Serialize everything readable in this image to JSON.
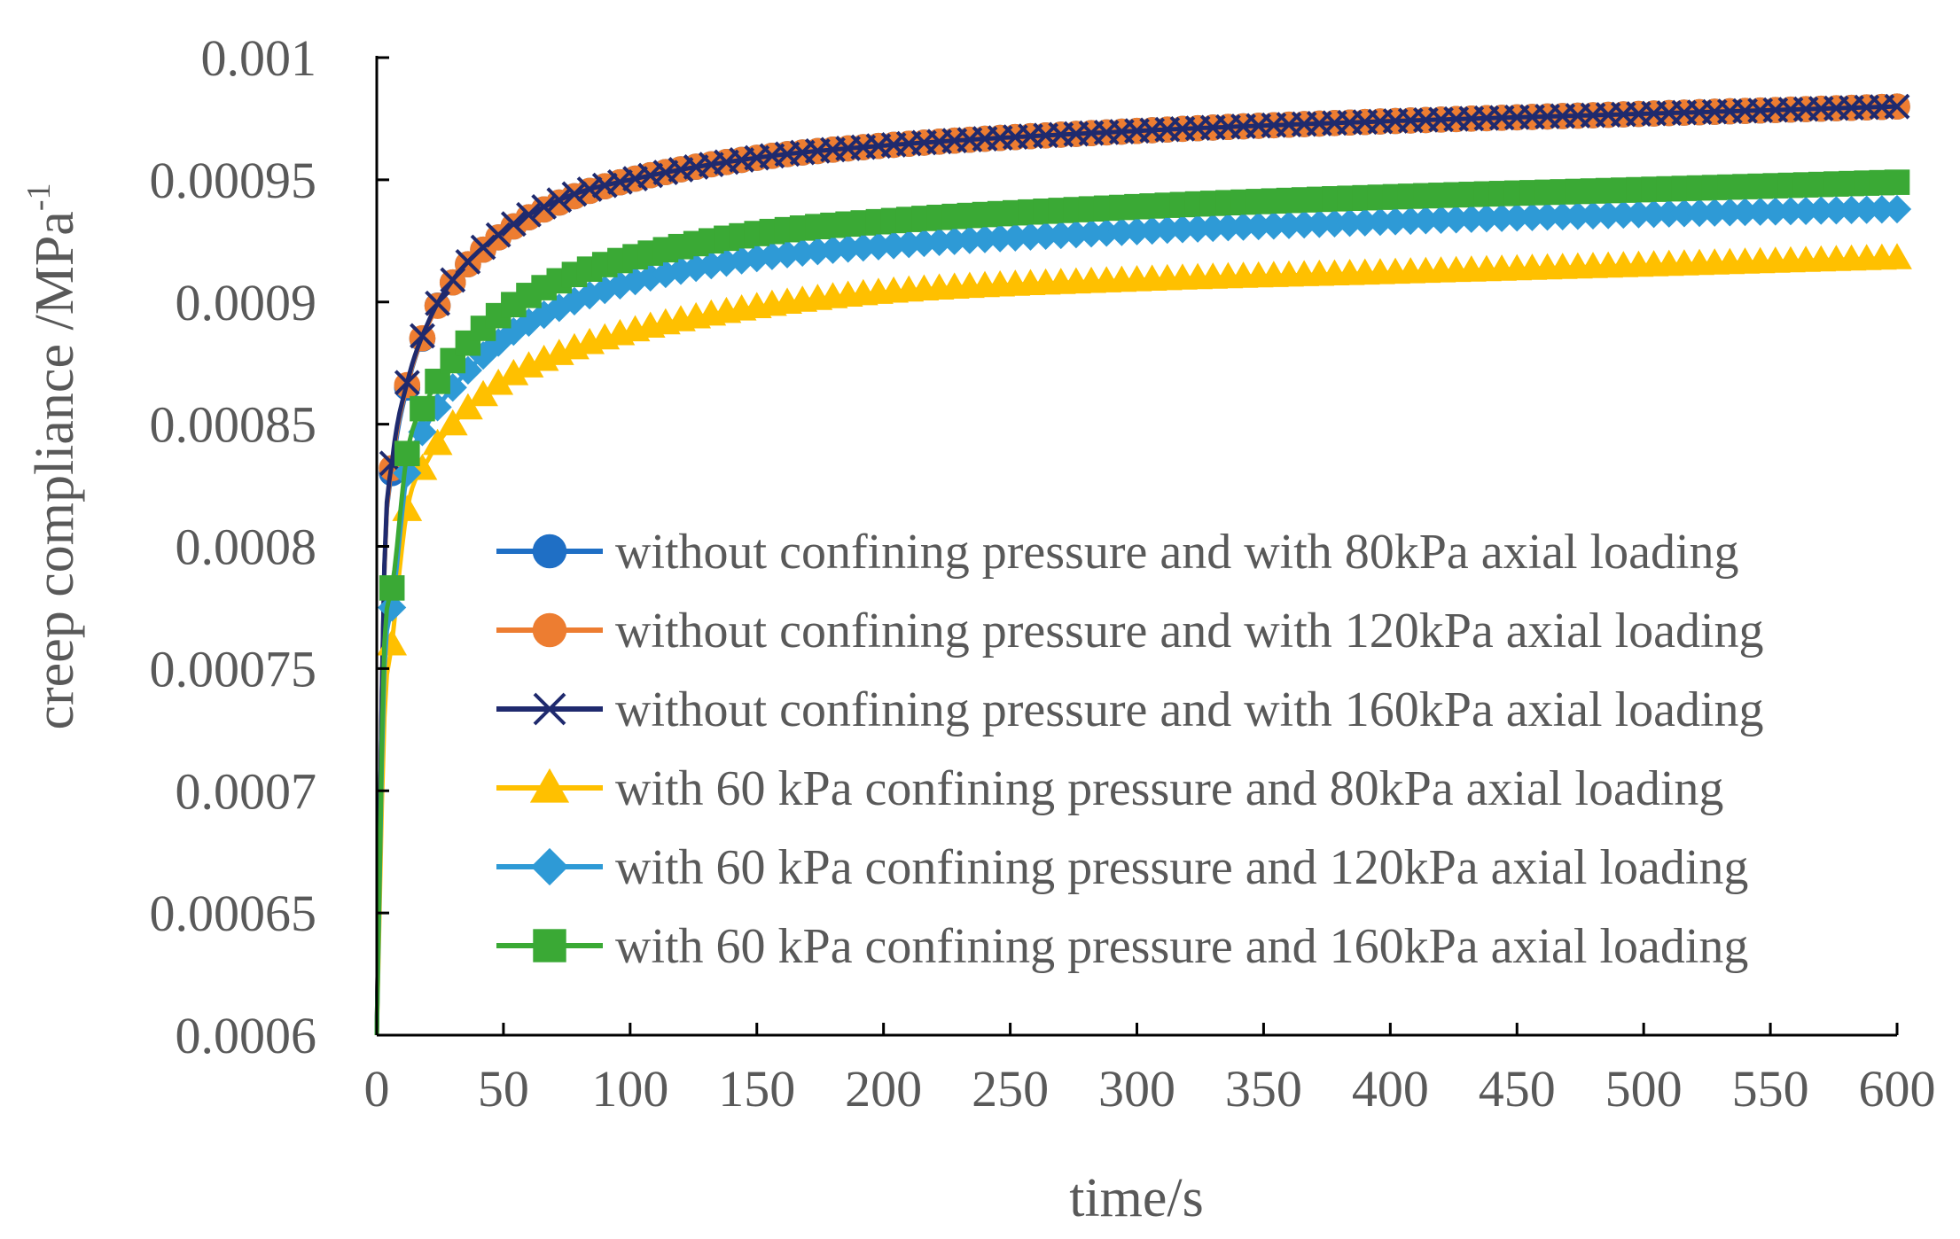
{
  "chart_data": {
    "type": "line",
    "title": "",
    "xlabel": "time/s",
    "ylabel": "creep compliance /MPa",
    "ylabel_superscript": "-1",
    "xlim": [
      0,
      600
    ],
    "ylim": [
      0.0006,
      0.001
    ],
    "x_ticks": [
      0,
      50,
      100,
      150,
      200,
      250,
      300,
      350,
      400,
      450,
      500,
      550,
      600
    ],
    "x_tick_labels": [
      "0",
      "50",
      "100",
      "150",
      "200",
      "250",
      "300",
      "350",
      "400",
      "450",
      "500",
      "550",
      "600"
    ],
    "y_ticks": [
      0.0006,
      0.00065,
      0.0007,
      0.00075,
      0.0008,
      0.00085,
      0.0009,
      0.00095,
      0.001
    ],
    "y_tick_labels": [
      "0.0006",
      "0.00065",
      "0.0007",
      "0.00075",
      "0.0008",
      "0.00085",
      "0.0009",
      "0.00095",
      "0.001"
    ],
    "grid": false,
    "legend_position": "bottom-right",
    "marker_interval_s": 6,
    "series": [
      {
        "name": "without confining pressure and with 80kPa axial loading",
        "color": "#1f6fc5",
        "marker": "circle",
        "x": [
          0,
          3,
          6,
          12,
          20,
          30,
          50,
          75,
          100,
          150,
          200,
          300,
          400,
          500,
          600
        ],
        "values": [
          0.0006,
          0.00079,
          0.00083,
          0.000865,
          0.00089,
          0.000908,
          0.000928,
          0.000942,
          0.00095,
          0.000959,
          0.000964,
          0.00097,
          0.000974,
          0.000977,
          0.00098
        ]
      },
      {
        "name": "without confining pressure and with 120kPa axial loading",
        "color": "#ed7d31",
        "marker": "circle",
        "x": [
          0,
          3,
          6,
          12,
          20,
          30,
          50,
          75,
          100,
          150,
          200,
          300,
          400,
          500,
          600
        ],
        "values": [
          0.0006,
          0.00079,
          0.000832,
          0.000866,
          0.00089,
          0.000908,
          0.000928,
          0.000942,
          0.00095,
          0.000959,
          0.000964,
          0.00097,
          0.000974,
          0.000977,
          0.00098
        ]
      },
      {
        "name": "without confining pressure and with 160kPa axial loading",
        "color": "#1f2a6e",
        "marker": "x",
        "x": [
          0,
          3,
          6,
          12,
          20,
          30,
          50,
          75,
          100,
          150,
          200,
          300,
          400,
          500,
          600
        ],
        "values": [
          0.0006,
          0.000792,
          0.000834,
          0.000867,
          0.000891,
          0.000909,
          0.000929,
          0.000943,
          0.00095,
          0.000959,
          0.000964,
          0.00097,
          0.000974,
          0.000977,
          0.00098
        ]
      },
      {
        "name": "with 60 kPa confining pressure and 80kPa axial loading",
        "color": "#ffc000",
        "marker": "triangle",
        "x": [
          0,
          3,
          6,
          12,
          20,
          30,
          50,
          75,
          100,
          150,
          200,
          300,
          400,
          500,
          600
        ],
        "values": [
          0.0006,
          0.00073,
          0.00076,
          0.000815,
          0.000835,
          0.00085,
          0.000868,
          0.00088,
          0.000888,
          0.000898,
          0.000904,
          0.000909,
          0.000912,
          0.000915,
          0.000918
        ]
      },
      {
        "name": "with 60 kPa confining pressure and 120kPa axial loading",
        "color": "#2e9ad6",
        "marker": "diamond",
        "x": [
          0,
          3,
          6,
          12,
          20,
          30,
          50,
          75,
          100,
          150,
          200,
          300,
          400,
          500,
          600
        ],
        "values": [
          0.0006,
          0.00075,
          0.000775,
          0.00083,
          0.00085,
          0.000865,
          0.000885,
          0.000899,
          0.000908,
          0.000918,
          0.000923,
          0.000929,
          0.000933,
          0.000936,
          0.000938
        ]
      },
      {
        "name": "with 60 kPa confining pressure and 160kPa axial loading",
        "color": "#3aa935",
        "marker": "square",
        "x": [
          0,
          3,
          6,
          12,
          20,
          30,
          50,
          75,
          100,
          150,
          200,
          300,
          400,
          500,
          600
        ],
        "values": [
          0.0006,
          0.00076,
          0.000783,
          0.000838,
          0.00086,
          0.000876,
          0.000896,
          0.00091,
          0.000918,
          0.000928,
          0.000933,
          0.000939,
          0.000943,
          0.000946,
          0.000949
        ]
      }
    ]
  }
}
